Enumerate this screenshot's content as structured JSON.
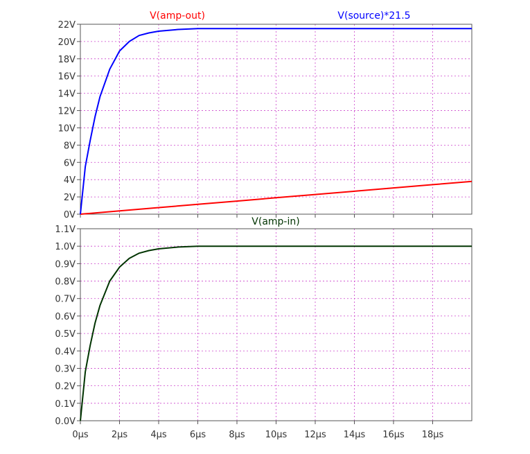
{
  "chart_data": [
    {
      "type": "line",
      "x_unit": "µs",
      "ylim": [
        0,
        22
      ],
      "xlim": [
        0,
        20
      ],
      "x_ticks": [
        "0µs",
        "2µs",
        "4µs",
        "6µs",
        "8µs",
        "10µs",
        "12µs",
        "14µs",
        "16µs",
        "18µs"
      ],
      "y_ticks": [
        "0V",
        "2V",
        "4V",
        "6V",
        "8V",
        "10V",
        "12V",
        "14V",
        "16V",
        "18V",
        "20V",
        "22V"
      ],
      "grid": true,
      "series": [
        {
          "name": "V(amp-out)",
          "color": "#ff0000",
          "x": [
            0,
            2,
            4,
            6,
            8,
            10,
            12,
            14,
            16,
            18,
            20
          ],
          "y": [
            0,
            0.38,
            0.76,
            1.14,
            1.52,
            1.9,
            2.28,
            2.66,
            3.04,
            3.42,
            3.8
          ]
        },
        {
          "name": "V(source)*21.5",
          "color": "#0000ff",
          "x": [
            0,
            0.25,
            0.5,
            0.75,
            1,
            1.5,
            2,
            2.5,
            3,
            3.5,
            4,
            5,
            6,
            7,
            8,
            10,
            12,
            14,
            16,
            18,
            20
          ],
          "y": [
            0,
            5.5,
            8.5,
            11.3,
            13.6,
            16.8,
            18.9,
            20.0,
            20.7,
            21.0,
            21.2,
            21.4,
            21.5,
            21.5,
            21.5,
            21.5,
            21.5,
            21.5,
            21.5,
            21.5,
            21.5
          ]
        }
      ]
    },
    {
      "type": "line",
      "x_unit": "µs",
      "ylim": [
        0,
        1.1
      ],
      "xlim": [
        0,
        20
      ],
      "x_ticks": [
        "0µs",
        "2µs",
        "4µs",
        "6µs",
        "8µs",
        "10µs",
        "12µs",
        "14µs",
        "16µs",
        "18µs"
      ],
      "y_ticks": [
        "0.0V",
        "0.1V",
        "0.2V",
        "0.3V",
        "0.4V",
        "0.5V",
        "0.6V",
        "0.7V",
        "0.8V",
        "0.9V",
        "1.0V",
        "1.1V"
      ],
      "grid": true,
      "series": [
        {
          "name": "V(amp-in)",
          "color": "#003300",
          "x": [
            0,
            0.25,
            0.5,
            0.75,
            1,
            1.5,
            2,
            2.5,
            3,
            3.5,
            4,
            5,
            6,
            7,
            8,
            10,
            12,
            14,
            16,
            18,
            20
          ],
          "y": [
            0,
            0.28,
            0.43,
            0.56,
            0.66,
            0.8,
            0.88,
            0.93,
            0.96,
            0.975,
            0.985,
            0.995,
            1.0,
            1.0,
            1.0,
            1.0,
            1.0,
            1.0,
            1.0,
            1.0,
            1.0
          ]
        }
      ]
    }
  ]
}
